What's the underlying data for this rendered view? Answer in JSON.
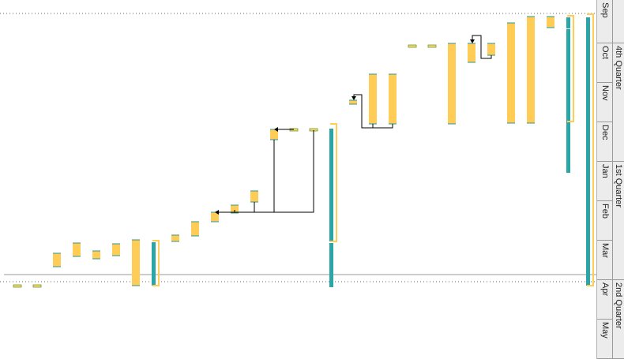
{
  "timescale": {
    "months": [
      "Sep",
      "Oct",
      "Nov",
      "Dec",
      "Jan",
      "Feb",
      "Mar",
      "Apr",
      "May"
    ],
    "quarters": [
      "4th Quarter",
      "1st Quarter",
      "2nd Quarter"
    ]
  },
  "colors": {
    "task_bar": "#ffcc55",
    "summary_bar": "#2aa6a6",
    "milestone_fill": "#ffd866",
    "link_line": "#000000",
    "baseline_dotted": "#666666",
    "current_date_line": "#9a9a9a"
  },
  "icons": [
    "arrow-head-icon"
  ]
}
